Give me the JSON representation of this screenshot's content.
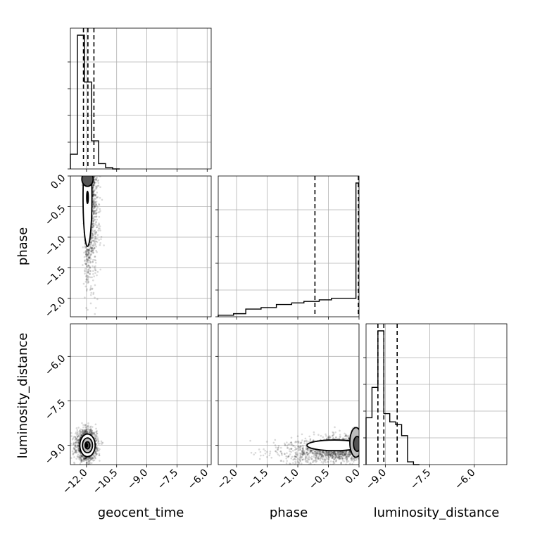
{
  "chart_data": {
    "type": "corner",
    "parameters": [
      "geocent_time",
      "phase",
      "luminosity_distance"
    ],
    "axes": {
      "geocent_time": {
        "range": [
          -12.8,
          -5.8
        ],
        "ticks": [
          -12.0,
          -10.5,
          -9.0,
          -7.5,
          -6.0
        ],
        "tick_labels": [
          "−12.0",
          "−10.5",
          "−9.0",
          "−7.5",
          "−6.0"
        ]
      },
      "phase": {
        "range": [
          -2.3,
          0.0
        ],
        "ticks": [
          -2.0,
          -1.5,
          -1.0,
          -0.5,
          0.0
        ],
        "tick_labels": [
          "−2.0",
          "−1.5",
          "−1.0",
          "−0.5",
          "0.0"
        ]
      },
      "luminosity_distance": {
        "range": [
          -9.65,
          -4.9
        ],
        "ticks": [
          -9.0,
          -7.5,
          -6.0
        ],
        "tick_labels": [
          "−9.0",
          "−7.5",
          "−6.0"
        ]
      }
    },
    "histograms": {
      "geocent_time": {
        "bin_edges": [
          -12.8,
          -12.45,
          -12.1,
          -11.75,
          -11.4,
          -11.05,
          -10.7,
          -10.35
        ],
        "counts": [
          0.11,
          1.0,
          0.65,
          0.21,
          0.04,
          0.01,
          0.0
        ],
        "quantiles": [
          -12.15,
          -11.93,
          -11.63
        ]
      },
      "phase": {
        "bin_edges": [
          -2.3,
          -2.05,
          -1.85,
          -1.6,
          -1.35,
          -1.1,
          -0.9,
          -0.65,
          -0.45,
          -0.05,
          0.0
        ],
        "counts": [
          0.01,
          0.02,
          0.05,
          0.06,
          0.08,
          0.09,
          0.1,
          0.11,
          0.12,
          0.87
        ],
        "quantiles": [
          -0.72,
          -0.01
        ]
      },
      "luminosity_distance": {
        "bin_edges": [
          -9.65,
          -9.45,
          -9.25,
          -9.05,
          -8.85,
          -8.65,
          -8.45,
          -8.25,
          -8.05,
          -7.85
        ],
        "counts": [
          0.34,
          0.56,
          0.97,
          0.37,
          0.31,
          0.29,
          0.21,
          0.02,
          0.0
        ],
        "quantiles": [
          -9.25,
          -9.05,
          -8.6
        ]
      }
    },
    "quantile_style": "dashed",
    "grid": true
  }
}
